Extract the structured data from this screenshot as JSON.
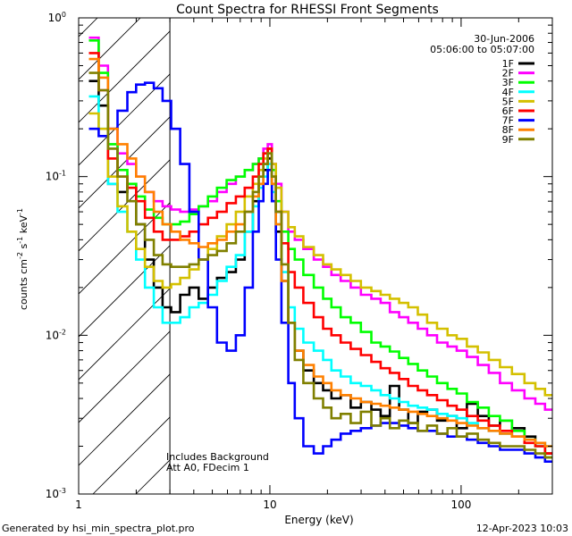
{
  "chart_data": {
    "type": "line",
    "title": "Count Spectra for RHESSI Front Segments",
    "xlabel": "Energy (keV)",
    "ylabel": {
      "main": "counts cm",
      "exp1": "-2",
      "mid": " s",
      "exp2": "-1",
      "tail": " keV",
      "exp3": "-1"
    },
    "xscale": "log",
    "yscale": "log",
    "xlim": [
      1,
      300
    ],
    "ylim": [
      0.001,
      1.0
    ],
    "x_ticks": [
      {
        "value": 1,
        "label": "1"
      },
      {
        "value": 10,
        "label": "10"
      },
      {
        "value": 100,
        "label": "100"
      }
    ],
    "y_ticks": [
      {
        "value": 0.001,
        "base": "10",
        "exp": "-3"
      },
      {
        "value": 0.01,
        "base": "10",
        "exp": "-2"
      },
      {
        "value": 0.1,
        "base": "10",
        "exp": "-1"
      },
      {
        "value": 1.0,
        "base": "10",
        "exp": "0"
      }
    ],
    "date": "30-Jun-2006",
    "time_range": "05:06:00 to 05:07:00",
    "annotations": [
      "Includes Background",
      "Att A0, FDecim 1"
    ],
    "attenuator_energy_keV": 3,
    "energy_bins_keV": [
      1.2,
      1.35,
      1.5,
      1.7,
      1.9,
      2.1,
      2.35,
      2.6,
      2.9,
      3.2,
      3.6,
      4.0,
      4.5,
      5.0,
      5.6,
      6.3,
      7.0,
      7.8,
      8.5,
      9.0,
      9.5,
      10.0,
      10.5,
      11.0,
      12.0,
      13.0,
      14.0,
      16.0,
      18.0,
      20.0,
      22.0,
      25.0,
      28.0,
      32.0,
      36.0,
      40.0,
      45.0,
      50.0,
      56.0,
      63.0,
      70.0,
      80.0,
      90.0,
      100.0,
      115.0,
      130.0,
      150.0,
      170.0,
      200.0,
      230.0,
      260.0,
      290.0
    ],
    "series": [
      {
        "name": "1F",
        "color": "#000000",
        "values": [
          0.4,
          0.28,
          0.09,
          0.08,
          0.09,
          0.05,
          0.03,
          0.02,
          0.015,
          0.014,
          0.018,
          0.02,
          0.017,
          0.02,
          0.023,
          0.025,
          0.03,
          0.045,
          0.07,
          0.09,
          0.11,
          0.13,
          0.09,
          0.045,
          0.022,
          0.012,
          0.008,
          0.006,
          0.005,
          0.0045,
          0.004,
          0.0042,
          0.0035,
          0.0038,
          0.0034,
          0.0031,
          0.0048,
          0.0034,
          0.0028,
          0.0033,
          0.0034,
          0.0029,
          0.0031,
          0.0026,
          0.0037,
          0.0031,
          0.0027,
          0.0029,
          0.0026,
          0.0023,
          0.0021,
          0.0018
        ]
      },
      {
        "name": "2F",
        "color": "#ff00ff",
        "values": [
          0.75,
          0.5,
          0.2,
          0.14,
          0.12,
          0.1,
          0.08,
          0.07,
          0.065,
          0.062,
          0.06,
          0.062,
          0.065,
          0.07,
          0.08,
          0.09,
          0.1,
          0.11,
          0.12,
          0.13,
          0.15,
          0.16,
          0.12,
          0.09,
          0.06,
          0.045,
          0.04,
          0.035,
          0.03,
          0.027,
          0.024,
          0.022,
          0.02,
          0.018,
          0.017,
          0.016,
          0.014,
          0.013,
          0.012,
          0.011,
          0.01,
          0.009,
          0.0085,
          0.008,
          0.0073,
          0.0065,
          0.0058,
          0.005,
          0.0045,
          0.004,
          0.0037,
          0.0034
        ]
      },
      {
        "name": "3F",
        "color": "#00ff00",
        "values": [
          0.72,
          0.45,
          0.16,
          0.11,
          0.09,
          0.075,
          0.062,
          0.055,
          0.05,
          0.05,
          0.052,
          0.058,
          0.065,
          0.075,
          0.085,
          0.095,
          0.1,
          0.11,
          0.12,
          0.13,
          0.14,
          0.15,
          0.11,
          0.07,
          0.045,
          0.035,
          0.03,
          0.024,
          0.02,
          0.017,
          0.015,
          0.013,
          0.012,
          0.0105,
          0.009,
          0.0085,
          0.0079,
          0.0072,
          0.0066,
          0.006,
          0.0055,
          0.005,
          0.0046,
          0.0043,
          0.0038,
          0.0035,
          0.0031,
          0.0029,
          0.0025,
          0.0022,
          0.002,
          0.0017
        ]
      },
      {
        "name": "4F",
        "color": "#00ffff",
        "values": [
          0.32,
          0.2,
          0.09,
          0.06,
          0.045,
          0.03,
          0.02,
          0.015,
          0.012,
          0.012,
          0.013,
          0.015,
          0.016,
          0.018,
          0.022,
          0.027,
          0.032,
          0.045,
          0.065,
          0.085,
          0.1,
          0.12,
          0.08,
          0.05,
          0.025,
          0.015,
          0.011,
          0.009,
          0.008,
          0.007,
          0.006,
          0.0055,
          0.005,
          0.0048,
          0.0045,
          0.0042,
          0.004,
          0.0038,
          0.0036,
          0.0035,
          0.0034,
          0.0032,
          0.0031,
          0.003,
          0.0028,
          0.0026,
          0.0025,
          0.0024,
          0.0023,
          0.0022,
          0.0021,
          0.002
        ]
      },
      {
        "name": "5F",
        "color": "#d4c000",
        "values": [
          0.25,
          0.2,
          0.1,
          0.065,
          0.045,
          0.035,
          0.027,
          0.022,
          0.02,
          0.021,
          0.023,
          0.026,
          0.03,
          0.035,
          0.042,
          0.05,
          0.06,
          0.075,
          0.09,
          0.11,
          0.13,
          0.15,
          0.12,
          0.085,
          0.06,
          0.048,
          0.042,
          0.036,
          0.032,
          0.028,
          0.026,
          0.024,
          0.022,
          0.02,
          0.019,
          0.018,
          0.017,
          0.016,
          0.015,
          0.0135,
          0.012,
          0.011,
          0.01,
          0.0095,
          0.0085,
          0.0078,
          0.007,
          0.0063,
          0.0057,
          0.005,
          0.0046,
          0.0042
        ]
      },
      {
        "name": "6F",
        "color": "#ff0000",
        "values": [
          0.6,
          0.35,
          0.13,
          0.1,
          0.085,
          0.07,
          0.055,
          0.045,
          0.04,
          0.04,
          0.042,
          0.045,
          0.05,
          0.055,
          0.06,
          0.068,
          0.075,
          0.085,
          0.1,
          0.12,
          0.14,
          0.15,
          0.1,
          0.06,
          0.038,
          0.025,
          0.02,
          0.016,
          0.013,
          0.011,
          0.01,
          0.009,
          0.0082,
          0.0075,
          0.0068,
          0.0062,
          0.0058,
          0.0053,
          0.0048,
          0.0045,
          0.0042,
          0.0039,
          0.0036,
          0.0034,
          0.0031,
          0.0029,
          0.0027,
          0.0025,
          0.0023,
          0.0021,
          0.002,
          0.0018
        ]
      },
      {
        "name": "7F",
        "color": "#0000ff",
        "values": [
          0.2,
          0.18,
          0.2,
          0.26,
          0.34,
          0.38,
          0.39,
          0.36,
          0.3,
          0.2,
          0.12,
          0.06,
          0.03,
          0.015,
          0.009,
          0.008,
          0.01,
          0.02,
          0.045,
          0.07,
          0.09,
          0.11,
          0.07,
          0.03,
          0.012,
          0.005,
          0.003,
          0.002,
          0.0018,
          0.002,
          0.0022,
          0.0024,
          0.0025,
          0.0026,
          0.0027,
          0.0028,
          0.0028,
          0.0027,
          0.0026,
          0.0025,
          0.0025,
          0.0024,
          0.0023,
          0.0023,
          0.0022,
          0.0021,
          0.002,
          0.0019,
          0.0019,
          0.0018,
          0.0017,
          0.0016
        ]
      },
      {
        "name": "8F",
        "color": "#ff8000",
        "values": [
          0.55,
          0.42,
          0.2,
          0.16,
          0.13,
          0.1,
          0.08,
          0.06,
          0.05,
          0.045,
          0.04,
          0.038,
          0.036,
          0.038,
          0.04,
          0.045,
          0.05,
          0.06,
          0.075,
          0.09,
          0.12,
          0.14,
          0.09,
          0.05,
          0.022,
          0.012,
          0.008,
          0.0065,
          0.0055,
          0.005,
          0.0045,
          0.0042,
          0.004,
          0.0038,
          0.0037,
          0.0036,
          0.0035,
          0.0034,
          0.0033,
          0.0032,
          0.0031,
          0.003,
          0.0029,
          0.0028,
          0.0027,
          0.0026,
          0.0025,
          0.0024,
          0.0023,
          0.0022,
          0.0021,
          0.002
        ]
      },
      {
        "name": "9F",
        "color": "#808000",
        "values": [
          0.45,
          0.35,
          0.15,
          0.1,
          0.07,
          0.05,
          0.04,
          0.032,
          0.028,
          0.027,
          0.027,
          0.028,
          0.03,
          0.032,
          0.034,
          0.038,
          0.045,
          0.06,
          0.08,
          0.1,
          0.12,
          0.14,
          0.1,
          0.06,
          0.028,
          0.012,
          0.007,
          0.005,
          0.004,
          0.0035,
          0.003,
          0.0032,
          0.0028,
          0.0033,
          0.0027,
          0.003,
          0.0026,
          0.0029,
          0.0028,
          0.0025,
          0.0027,
          0.0024,
          0.0026,
          0.0023,
          0.0024,
          0.0022,
          0.0021,
          0.002,
          0.002,
          0.0019,
          0.0018,
          0.0017
        ]
      }
    ]
  },
  "footer": {
    "generated_by": "Generated by hsi_min_spectra_plot.pro",
    "timestamp": "12-Apr-2023 10:03"
  }
}
